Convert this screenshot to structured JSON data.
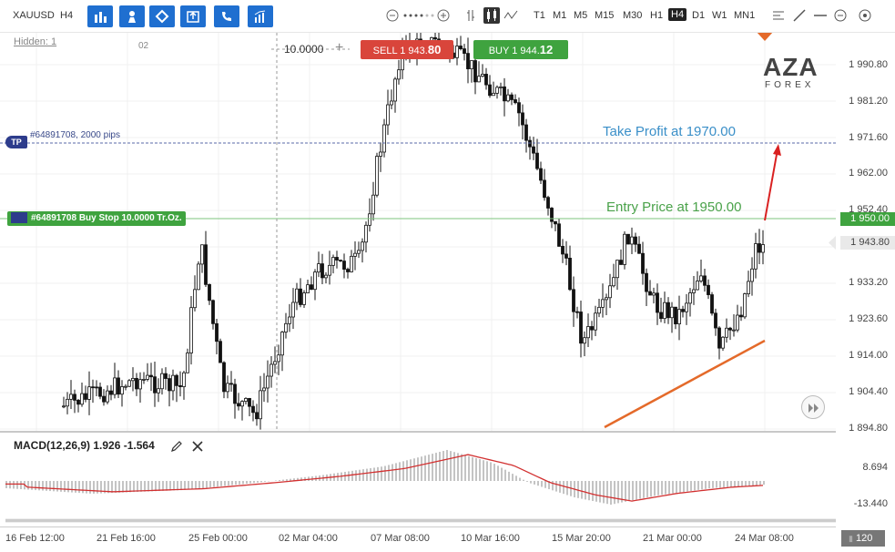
{
  "toolbar": {
    "symbol": "XAUUSD",
    "timeframe_label": "H4",
    "timeframes": [
      "T1",
      "M1",
      "M5",
      "M15",
      "M30",
      "H1",
      "H4",
      "D1",
      "W1",
      "MN1"
    ],
    "active_timeframe": "H4",
    "buttons": [
      "bar-chart-icon",
      "pawn-icon",
      "diamond-icon",
      "export-icon",
      "phone-icon",
      "indicators-icon"
    ]
  },
  "chart": {
    "hidden_label": "Hidden: 1",
    "small_label": "02",
    "lot_value": "10.0000",
    "sell": {
      "label": "SELL",
      "price_small": "1 943.",
      "price_big": "80"
    },
    "buy": {
      "label": "BUY",
      "price_small": "1 944.",
      "price_big": "12"
    },
    "tp_order_text": "#64891708, 2000 pips",
    "tp_marker": "TP",
    "order_text": "#64891708 Buy Stop 10.0000 Tr.Oz.",
    "tp_annotation": "Take Profit at 1970.00",
    "entry_annotation": "Entry Price at 1950.00",
    "logo_main": "AZA",
    "logo_sub": "FOREX",
    "entry_price_tag": "1 950.00",
    "current_price_tag": "1 943.80",
    "price_ticks": [
      "1 990.80",
      "1 981.20",
      "1 971.60",
      "1 962.00",
      "1 952.40",
      "1 943.80",
      "1 933.20",
      "1 923.60",
      "1 914.00",
      "1 904.40",
      "1 894.80"
    ],
    "colors": {
      "sell": "#d9453b",
      "buy": "#3fa33f",
      "tp": "#2d3c8c",
      "trend": "#e46a2a",
      "arrow": "#d92020"
    }
  },
  "macd": {
    "label": "MACD(12,26,9) 1.926 -1.564",
    "axis_ticks": [
      "8.694",
      "-13.440"
    ]
  },
  "time_axis": {
    "ticks": [
      "16 Feb 12:00",
      "21 Feb 16:00",
      "25 Feb 00:00",
      "02 Mar 04:00",
      "07 Mar 08:00",
      "10 Mar 16:00",
      "15 Mar 20:00",
      "21 Mar 00:00",
      "24 Mar 08:00"
    ]
  },
  "zoom": "120"
}
